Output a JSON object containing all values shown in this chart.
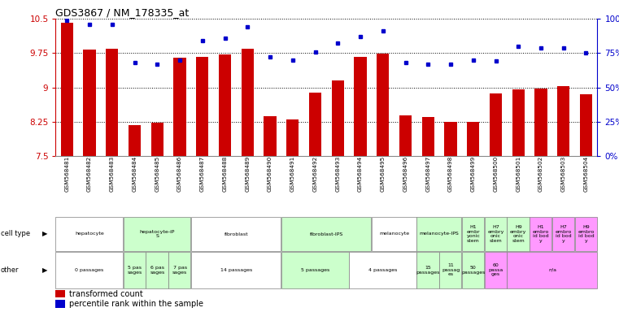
{
  "title": "GDS3867 / NM_178335_at",
  "samples": [
    "GSM568481",
    "GSM568482",
    "GSM568483",
    "GSM568484",
    "GSM568485",
    "GSM568486",
    "GSM568487",
    "GSM568488",
    "GSM568489",
    "GSM568490",
    "GSM568491",
    "GSM568492",
    "GSM568493",
    "GSM568494",
    "GSM568495",
    "GSM568496",
    "GSM568497",
    "GSM568498",
    "GSM568499",
    "GSM568500",
    "GSM568501",
    "GSM568502",
    "GSM568503",
    "GSM568504"
  ],
  "bar_values": [
    10.42,
    9.83,
    9.85,
    8.18,
    8.22,
    9.65,
    9.67,
    9.72,
    9.85,
    8.37,
    8.3,
    8.88,
    9.15,
    9.67,
    9.74,
    8.38,
    8.35,
    8.25,
    8.25,
    8.87,
    8.95,
    8.97,
    9.03,
    8.85
  ],
  "percentile_values": [
    99,
    96,
    96,
    68,
    67,
    70,
    84,
    86,
    94,
    72,
    70,
    76,
    82,
    87,
    91,
    68,
    67,
    67,
    70,
    69,
    80,
    79,
    79,
    75
  ],
  "ylim": [
    7.5,
    10.5
  ],
  "yticks": [
    7.5,
    8.25,
    9.0,
    9.75,
    10.5
  ],
  "ytick_labels": [
    "7.5",
    "8.25",
    "9",
    "9.75",
    "10.5"
  ],
  "right_yticks": [
    0,
    25,
    50,
    75,
    100
  ],
  "right_ytick_labels": [
    "0%",
    "25%",
    "50%",
    "75%",
    "100%"
  ],
  "bar_color": "#cc0000",
  "dot_color": "#0000cc",
  "cell_type_groups": [
    {
      "label": "hepatocyte",
      "start": 0,
      "end": 2,
      "color": "#ffffff"
    },
    {
      "label": "hepatocyte-iP\nS",
      "start": 3,
      "end": 5,
      "color": "#ccffcc"
    },
    {
      "label": "fibroblast",
      "start": 6,
      "end": 9,
      "color": "#ffffff"
    },
    {
      "label": "fibroblast-IPS",
      "start": 10,
      "end": 13,
      "color": "#ccffcc"
    },
    {
      "label": "melanocyte",
      "start": 14,
      "end": 15,
      "color": "#ffffff"
    },
    {
      "label": "melanocyte-IPS",
      "start": 16,
      "end": 17,
      "color": "#ccffcc"
    },
    {
      "label": "H1\nembr\nyonic\nstem",
      "start": 18,
      "end": 18,
      "color": "#ccffcc"
    },
    {
      "label": "H7\nembry\nonic\nstem",
      "start": 19,
      "end": 19,
      "color": "#ccffcc"
    },
    {
      "label": "H9\nembry\nonic\nstem",
      "start": 20,
      "end": 20,
      "color": "#ccffcc"
    },
    {
      "label": "H1\nembro\nid bod\ny",
      "start": 21,
      "end": 21,
      "color": "#ff99ff"
    },
    {
      "label": "H7\nembro\nid bod\ny",
      "start": 22,
      "end": 22,
      "color": "#ff99ff"
    },
    {
      "label": "H9\nembro\nid bod\ny",
      "start": 23,
      "end": 23,
      "color": "#ff99ff"
    }
  ],
  "other_groups": [
    {
      "label": "0 passages",
      "start": 0,
      "end": 2,
      "color": "#ffffff"
    },
    {
      "label": "5 pas\nsages",
      "start": 3,
      "end": 3,
      "color": "#ccffcc"
    },
    {
      "label": "6 pas\nsages",
      "start": 4,
      "end": 4,
      "color": "#ccffcc"
    },
    {
      "label": "7 pas\nsages",
      "start": 5,
      "end": 5,
      "color": "#ccffcc"
    },
    {
      "label": "14 passages",
      "start": 6,
      "end": 9,
      "color": "#ffffff"
    },
    {
      "label": "5 passages",
      "start": 10,
      "end": 12,
      "color": "#ccffcc"
    },
    {
      "label": "4 passages",
      "start": 13,
      "end": 15,
      "color": "#ffffff"
    },
    {
      "label": "15\npassages",
      "start": 16,
      "end": 16,
      "color": "#ccffcc"
    },
    {
      "label": "11\npassag\nes",
      "start": 17,
      "end": 17,
      "color": "#ccffcc"
    },
    {
      "label": "50\npassages",
      "start": 18,
      "end": 18,
      "color": "#ccffcc"
    },
    {
      "label": "60\npassa\nges",
      "start": 19,
      "end": 19,
      "color": "#ff99ff"
    },
    {
      "label": "n/a",
      "start": 20,
      "end": 23,
      "color": "#ff99ff"
    }
  ],
  "left_axis_color": "#cc0000",
  "right_axis_color": "#0000cc",
  "fig_width": 7.61,
  "fig_height": 3.84,
  "dpi": 100
}
